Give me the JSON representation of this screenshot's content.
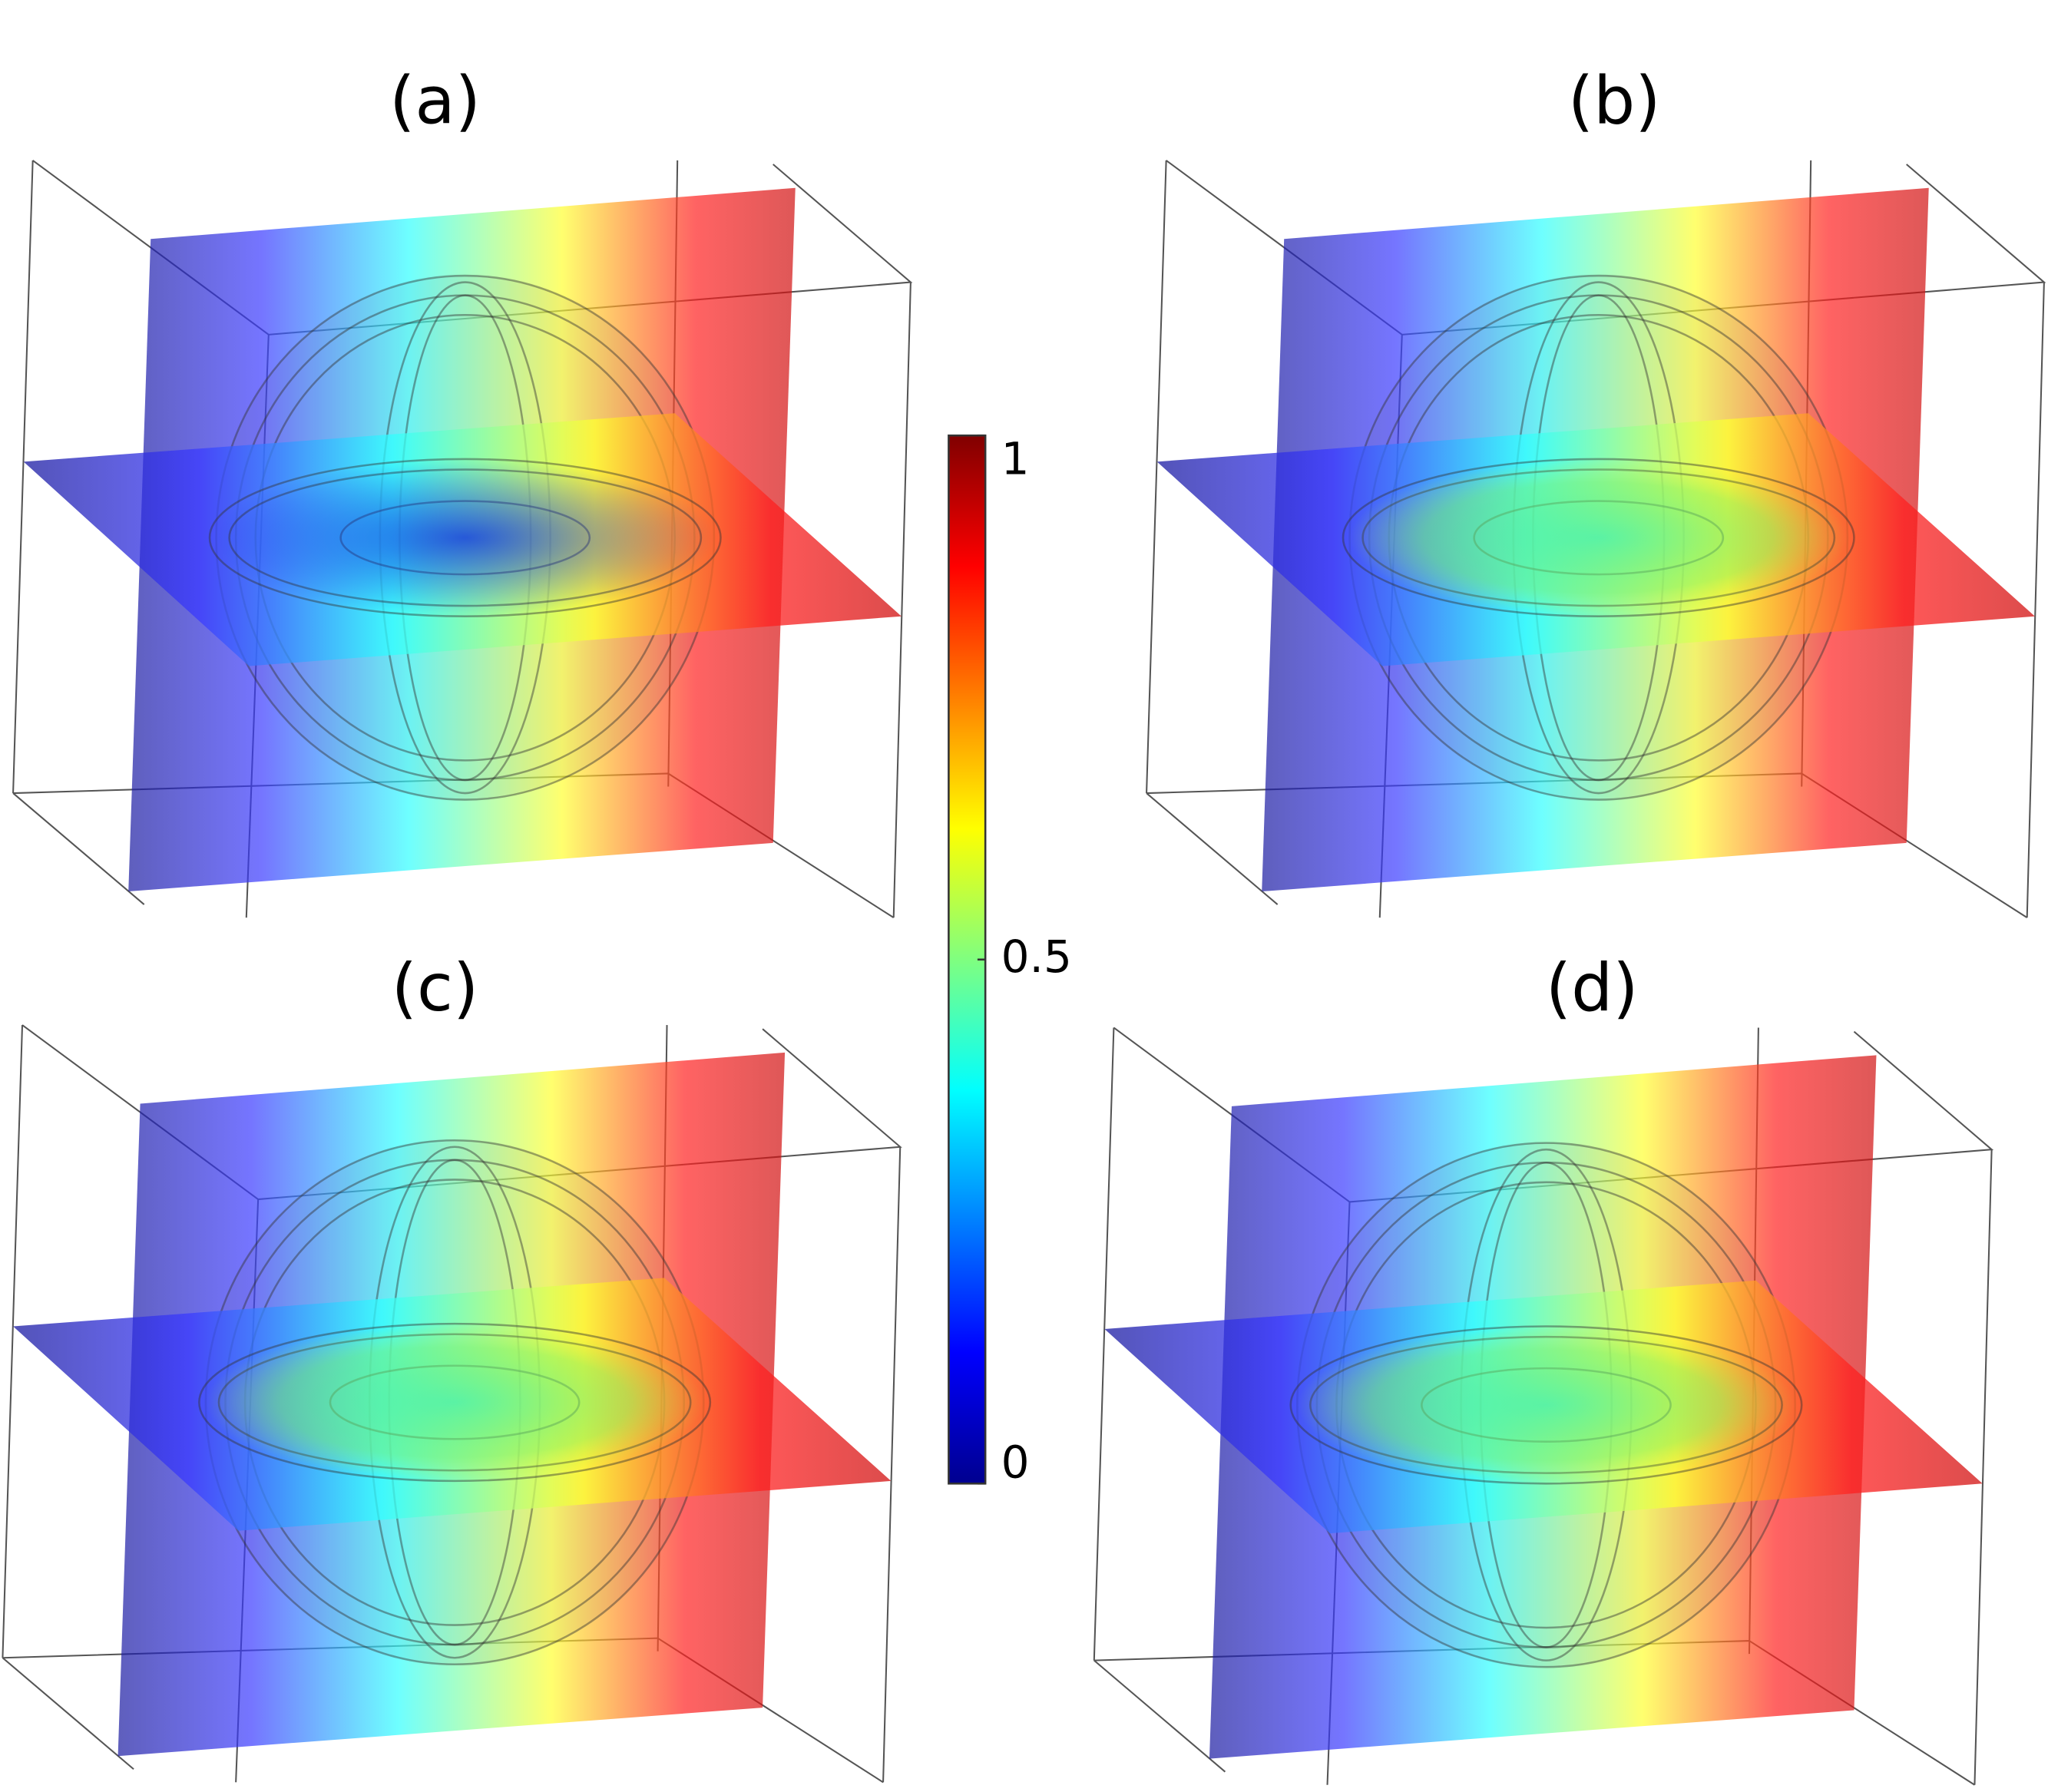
{
  "panels": [
    {
      "label": "(a)"
    },
    {
      "label": "(b)"
    },
    {
      "label": "(c)"
    },
    {
      "label": "(d)"
    }
  ],
  "colorbar": {
    "lim": [
      0,
      1
    ],
    "ticks": [
      0,
      0.5,
      1
    ]
  }
}
